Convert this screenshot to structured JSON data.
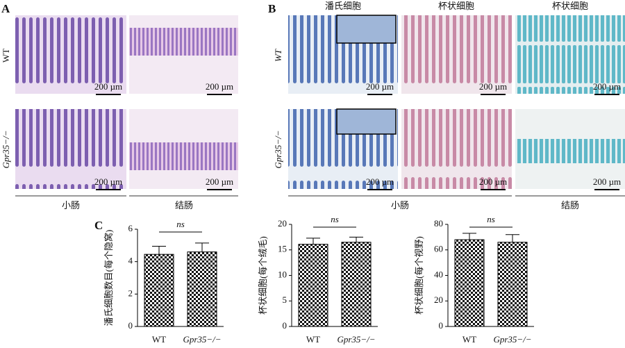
{
  "panels": {
    "a": {
      "label": "A",
      "rows": [
        "WT",
        "Gpr35−/−"
      ],
      "columns": [
        "小肠",
        "结肠"
      ]
    },
    "b": {
      "label": "B",
      "headers": [
        "潘氏细胞",
        "杯状细胞",
        "杯状细胞"
      ],
      "rows": [
        "WT",
        "Gpr35−/−"
      ],
      "columns": [
        "小肠",
        "结肠"
      ]
    },
    "c": {
      "label": "C"
    },
    "scale_bar": "200 µm"
  },
  "chart_data": [
    {
      "type": "bar",
      "ylabel": "潘氏细胞数目(每个隐窝)",
      "categories": [
        "WT",
        "Gpr35−/−"
      ],
      "values": [
        4.45,
        4.6
      ],
      "errors": [
        0.5,
        0.55
      ],
      "ylim": [
        0,
        6
      ],
      "yticks": [
        0,
        2,
        4,
        6
      ],
      "annotation": "ns"
    },
    {
      "type": "bar",
      "ylabel": "杯状细胞(每个绒毛)",
      "categories": [
        "WT",
        "Gpr35−/−"
      ],
      "values": [
        16.1,
        16.5
      ],
      "errors": [
        1.2,
        1.0
      ],
      "ylim": [
        0,
        20
      ],
      "yticks": [
        0,
        5,
        10,
        15,
        20
      ],
      "annotation": "ns"
    },
    {
      "type": "bar",
      "ylabel": "杯状细胞(每个视野)",
      "categories": [
        "WT",
        "Gpr35−/−"
      ],
      "values": [
        68,
        66
      ],
      "errors": [
        5,
        6
      ],
      "ylim": [
        0,
        80
      ],
      "yticks": [
        0,
        20,
        40,
        60,
        80
      ],
      "annotation": "ns"
    }
  ]
}
